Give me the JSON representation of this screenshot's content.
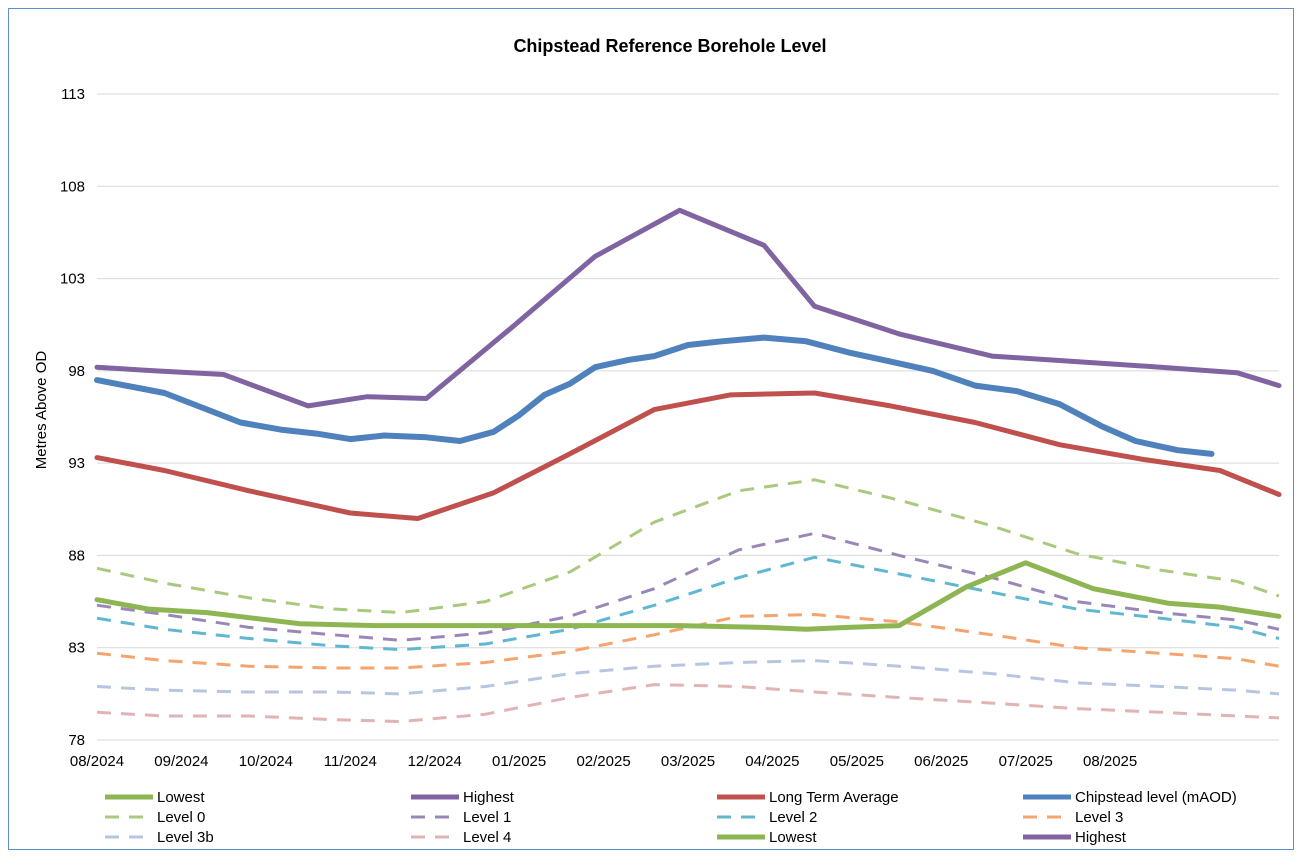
{
  "chart_data": {
    "type": "line",
    "title": "Chipstead Reference Borehole Level",
    "ylabel": "Metres Above OD",
    "xlabel": "",
    "ylim": [
      78,
      115
    ],
    "yticks": [
      78,
      83,
      88,
      93,
      98,
      103,
      108,
      113
    ],
    "grid": true,
    "legend_position": "bottom",
    "x_ticks": [
      "08/2024",
      "09/2024",
      "10/2024",
      "11/2024",
      "12/2024",
      "01/2025",
      "02/2025",
      "03/2025",
      "04/2025",
      "05/2025",
      "06/2025",
      "07/2025",
      "08/2025"
    ],
    "x_range": [
      0,
      14
    ],
    "series": [
      {
        "name": "Lowest",
        "color": "#8db552",
        "style": "solid",
        "width": 5,
        "x": [
          0,
          0.6,
          1.3,
          2.4,
          3.3,
          4.0,
          5.0,
          6.0,
          6.9,
          7.9,
          8.4,
          8.9,
          9.5,
          10.3,
          11.0,
          11.8,
          12.7,
          13.3,
          14.0
        ],
        "y": [
          85.6,
          85.1,
          84.9,
          84.3,
          84.2,
          84.2,
          84.2,
          84.2,
          84.2,
          84.1,
          84.0,
          84.1,
          84.2,
          86.3,
          87.6,
          86.2,
          85.4,
          85.2,
          84.7
        ]
      },
      {
        "name": "Highest",
        "color": "#8064a2",
        "style": "solid",
        "width": 5,
        "x": [
          0,
          0.7,
          1.5,
          2.5,
          3.2,
          3.9,
          4.9,
          5.9,
          6.9,
          7.9,
          8.5,
          9.5,
          10.6,
          11.6,
          12.6,
          13.5,
          14.0
        ],
        "y": [
          98.2,
          98.0,
          97.8,
          96.1,
          96.6,
          96.5,
          100.3,
          104.2,
          106.7,
          104.8,
          101.5,
          100.0,
          98.8,
          98.5,
          98.2,
          97.9,
          97.2
        ]
      },
      {
        "name": "Long Term Average",
        "color": "#c0504d",
        "style": "solid",
        "width": 5,
        "x": [
          0,
          0.8,
          1.8,
          3.0,
          3.8,
          4.7,
          5.6,
          6.6,
          7.5,
          8.5,
          9.4,
          10.4,
          11.4,
          12.4,
          13.3,
          14.0
        ],
        "y": [
          93.3,
          92.6,
          91.5,
          90.3,
          90.0,
          91.4,
          93.5,
          95.9,
          96.7,
          96.8,
          96.1,
          95.2,
          94.0,
          93.2,
          92.6,
          91.3
        ]
      },
      {
        "name": "Chipstead level (mAOD)",
        "color": "#4f81bd",
        "style": "solid",
        "width": 6,
        "x": [
          0,
          0.8,
          1.7,
          2.2,
          2.6,
          3.0,
          3.4,
          3.9,
          4.3,
          4.7,
          5.0,
          5.3,
          5.6,
          5.9,
          6.3,
          6.6,
          7.0,
          7.4,
          7.9,
          8.4,
          8.9,
          9.4,
          9.9,
          10.4,
          10.9,
          11.4,
          11.9,
          12.3,
          12.8,
          13.2
        ],
        "y": [
          97.5,
          96.8,
          95.2,
          94.8,
          94.6,
          94.3,
          94.5,
          94.4,
          94.2,
          94.7,
          95.6,
          96.7,
          97.3,
          98.2,
          98.6,
          98.8,
          99.4,
          99.6,
          99.8,
          99.6,
          99.0,
          98.5,
          98.0,
          97.2,
          96.9,
          96.2,
          95.0,
          94.2,
          93.7,
          93.5
        ]
      },
      {
        "name": "Level 0",
        "color": "#a9c97c",
        "style": "dashed",
        "width": 3,
        "x": [
          0,
          0.8,
          1.8,
          2.8,
          3.6,
          4.6,
          5.6,
          6.6,
          7.6,
          8.5,
          9.5,
          10.6,
          11.6,
          12.6,
          13.5,
          14.0
        ],
        "y": [
          87.3,
          86.5,
          85.7,
          85.1,
          84.9,
          85.5,
          87.1,
          89.8,
          91.5,
          92.1,
          91.0,
          89.6,
          88.1,
          87.2,
          86.6,
          85.8
        ]
      },
      {
        "name": "Level 1",
        "color": "#9b87b7",
        "style": "dashed",
        "width": 3,
        "x": [
          0,
          0.8,
          1.8,
          2.8,
          3.6,
          4.6,
          5.6,
          6.6,
          7.6,
          8.5,
          9.5,
          10.6,
          11.6,
          12.6,
          13.5,
          14.0
        ],
        "y": [
          85.3,
          84.8,
          84.1,
          83.7,
          83.4,
          83.8,
          84.7,
          86.2,
          88.3,
          89.2,
          88.0,
          86.8,
          85.5,
          84.9,
          84.5,
          84.0
        ]
      },
      {
        "name": "Level 2",
        "color": "#5fb7d0",
        "style": "dashed",
        "width": 3,
        "x": [
          0,
          0.8,
          1.8,
          2.8,
          3.6,
          4.6,
          5.6,
          6.6,
          7.6,
          8.5,
          9.5,
          10.6,
          11.6,
          12.6,
          13.5,
          14.0
        ],
        "y": [
          84.6,
          84.0,
          83.5,
          83.1,
          82.9,
          83.2,
          84.0,
          85.3,
          86.8,
          87.9,
          87.0,
          86.0,
          85.1,
          84.6,
          84.1,
          83.5
        ]
      },
      {
        "name": "Level 3",
        "color": "#f5a46e",
        "style": "dashed",
        "width": 3,
        "x": [
          0,
          0.8,
          1.8,
          2.8,
          3.6,
          4.6,
          5.6,
          6.6,
          7.6,
          8.5,
          9.5,
          10.6,
          11.6,
          12.6,
          13.5,
          14.0
        ],
        "y": [
          82.7,
          82.3,
          82.0,
          81.9,
          81.9,
          82.2,
          82.8,
          83.7,
          84.7,
          84.8,
          84.4,
          83.7,
          83.0,
          82.7,
          82.4,
          82.0
        ]
      },
      {
        "name": "Level 3b",
        "color": "#b6c6e0",
        "style": "dashed",
        "width": 3,
        "x": [
          0,
          0.8,
          1.8,
          2.8,
          3.6,
          4.6,
          5.6,
          6.6,
          7.6,
          8.5,
          9.5,
          10.6,
          11.6,
          12.6,
          13.5,
          14.0
        ],
        "y": [
          80.9,
          80.7,
          80.6,
          80.6,
          80.5,
          80.9,
          81.6,
          82.0,
          82.2,
          82.3,
          82.0,
          81.6,
          81.1,
          80.9,
          80.7,
          80.5
        ]
      },
      {
        "name": "Level 4",
        "color": "#e2b3b3",
        "style": "dashed",
        "width": 3,
        "x": [
          0,
          0.8,
          1.8,
          2.8,
          3.6,
          4.6,
          5.6,
          6.6,
          7.6,
          8.5,
          9.5,
          10.6,
          11.6,
          12.6,
          13.5,
          14.0
        ],
        "y": [
          79.5,
          79.3,
          79.3,
          79.1,
          79.0,
          79.4,
          80.3,
          81.0,
          80.9,
          80.6,
          80.3,
          80.0,
          79.7,
          79.5,
          79.3,
          79.2
        ]
      }
    ],
    "legend": [
      {
        "name": "Lowest",
        "color": "#8db552",
        "style": "solid"
      },
      {
        "name": "Highest",
        "color": "#8064a2",
        "style": "solid"
      },
      {
        "name": "Long Term Average",
        "color": "#c0504d",
        "style": "solid"
      },
      {
        "name": "Chipstead level (mAOD)",
        "color": "#4f81bd",
        "style": "solid"
      },
      {
        "name": "Level 0",
        "color": "#a9c97c",
        "style": "dashed"
      },
      {
        "name": "Level 1",
        "color": "#9b87b7",
        "style": "dashed"
      },
      {
        "name": "Level 2",
        "color": "#5fb7d0",
        "style": "dashed"
      },
      {
        "name": "Level 3",
        "color": "#f5a46e",
        "style": "dashed"
      },
      {
        "name": "Level 3b",
        "color": "#b6c6e0",
        "style": "dashed"
      },
      {
        "name": "Level 4",
        "color": "#e2b3b3",
        "style": "dashed"
      },
      {
        "name": "Lowest",
        "color": "#8db552",
        "style": "solid"
      },
      {
        "name": "Highest",
        "color": "#8064a2",
        "style": "solid"
      }
    ]
  }
}
